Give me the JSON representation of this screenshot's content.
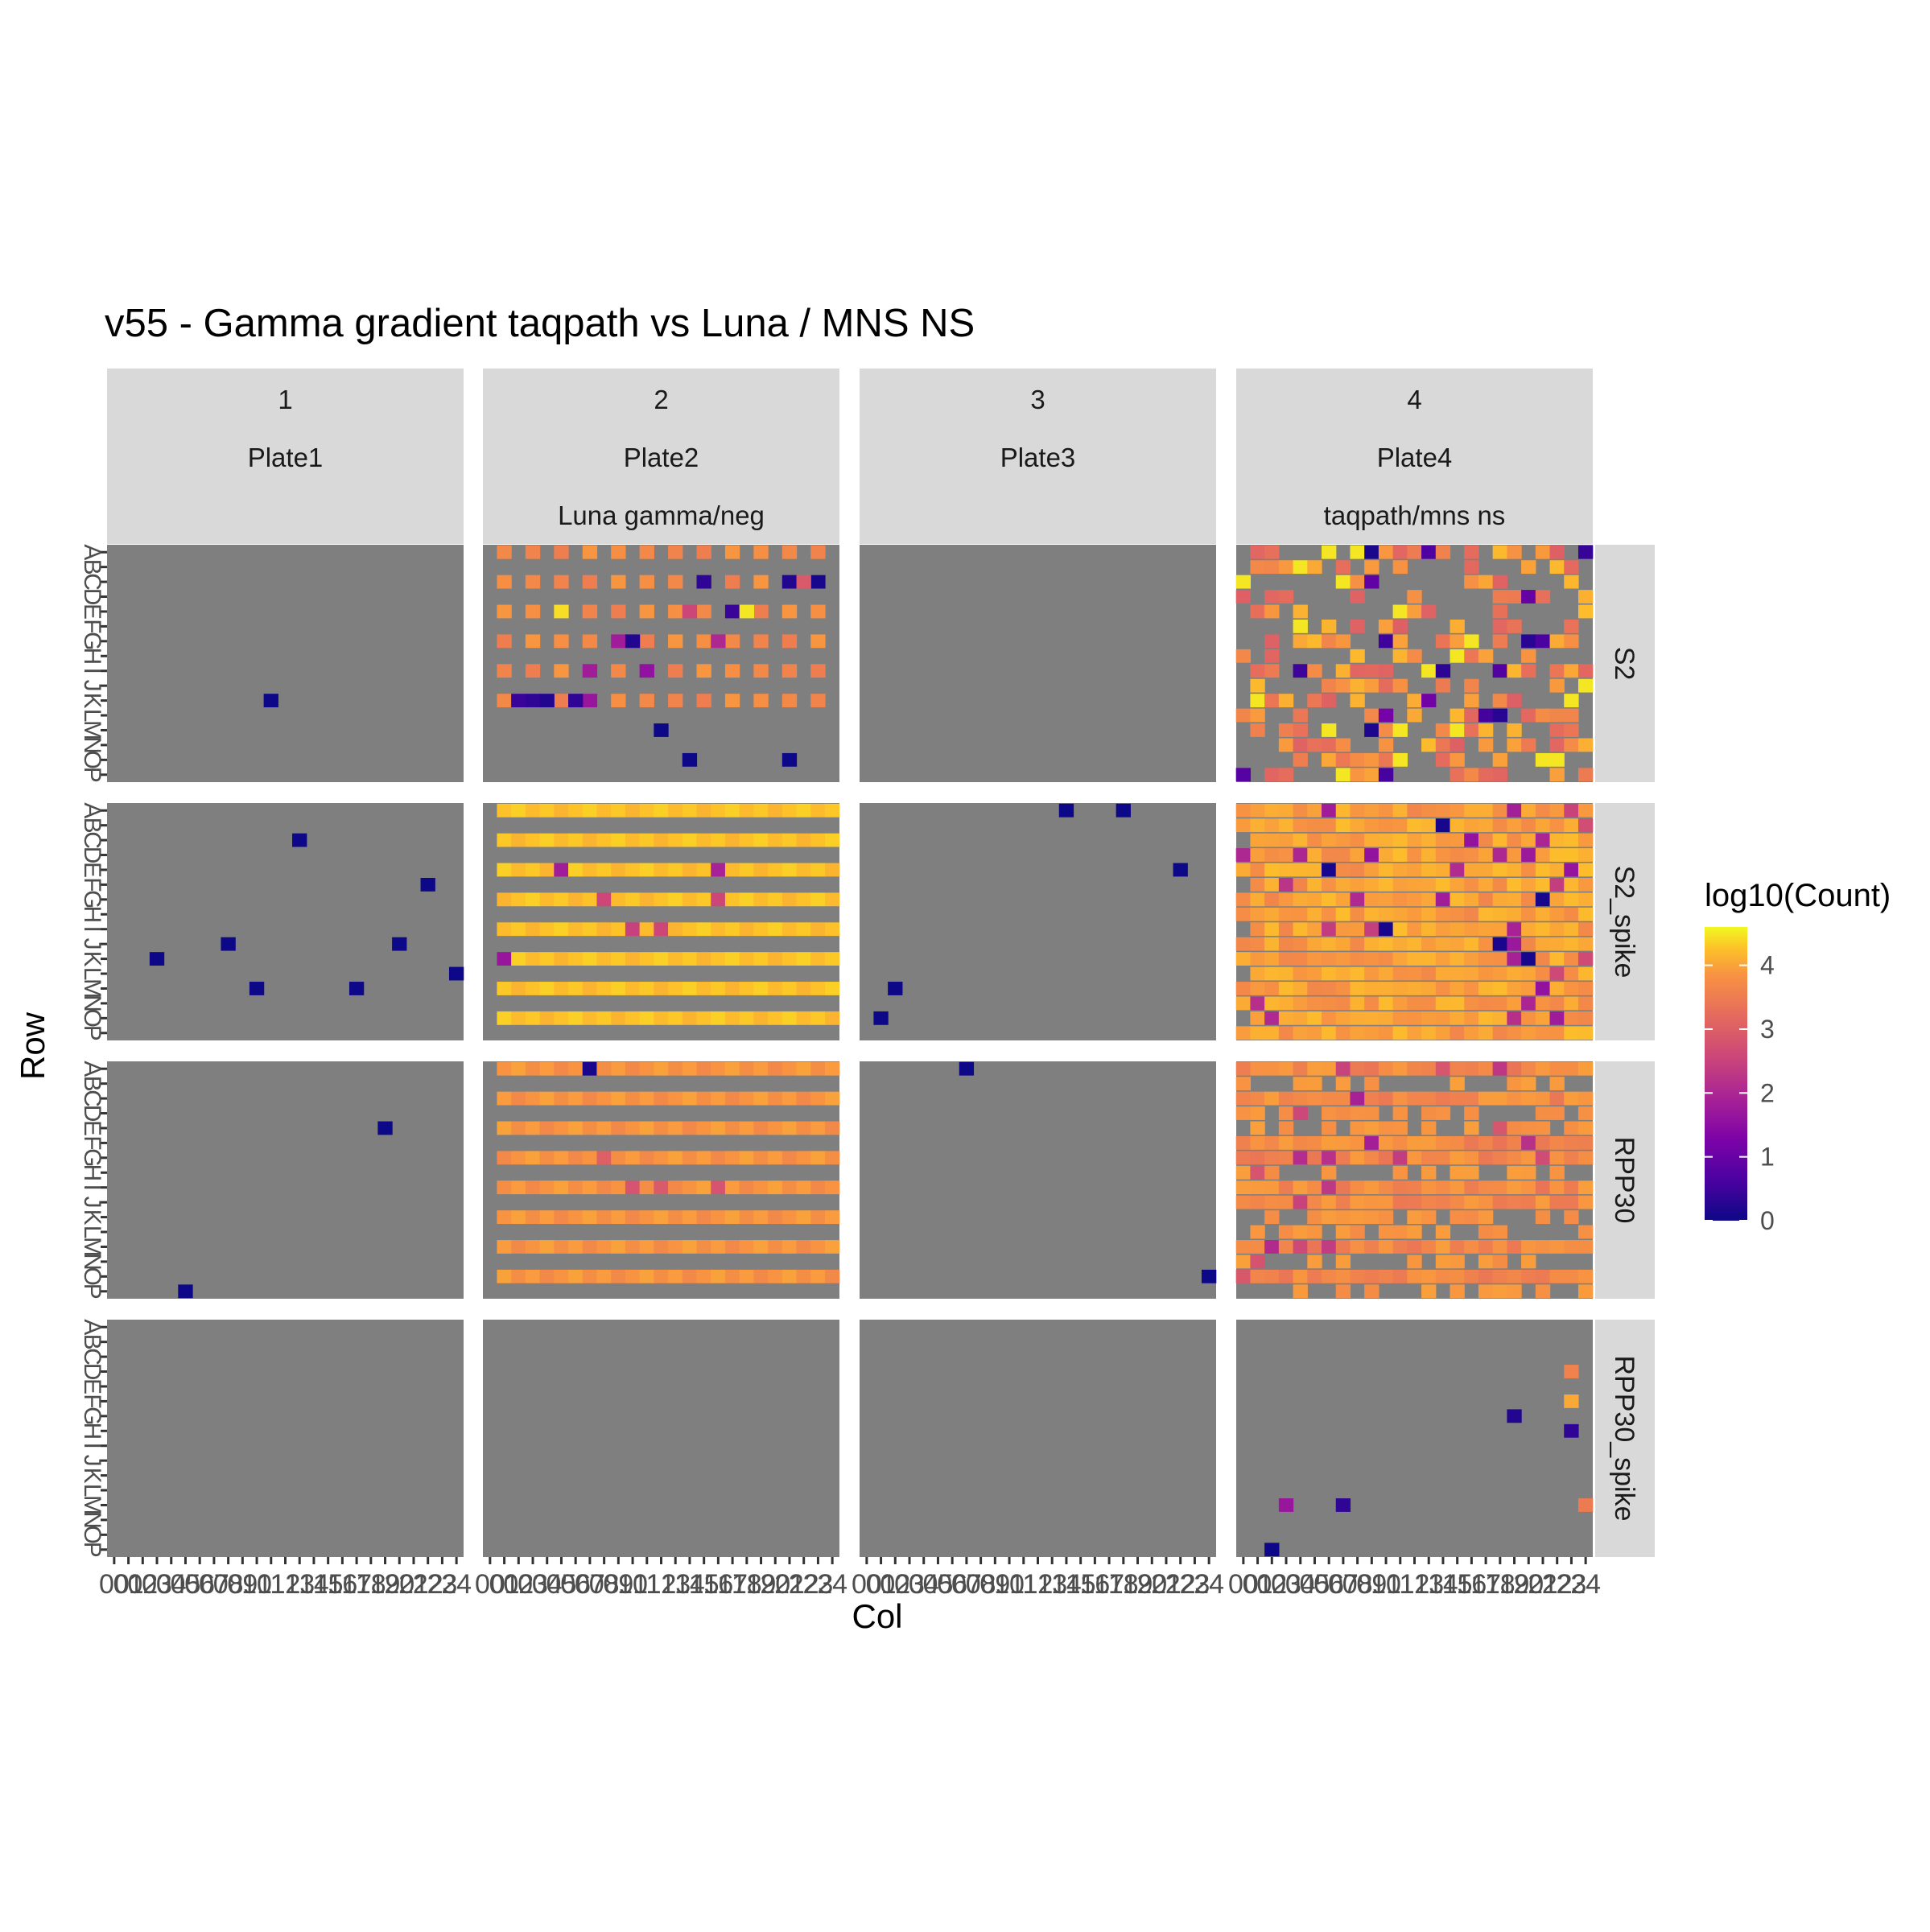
{
  "chart_data": {
    "type": "heatmap",
    "title": "v55 - Gamma gradient taqpath vs Luna /  MNS NS",
    "xlabel": "Col",
    "ylabel": "Row",
    "x_tick_labels": [
      "00",
      "01",
      "02",
      "03",
      "04",
      "05",
      "06",
      "07",
      "08",
      "09",
      "10",
      "11",
      "12",
      "13",
      "14",
      "15",
      "16",
      "17",
      "18",
      "19",
      "20",
      "21",
      "22",
      "23",
      "24"
    ],
    "y_tick_labels": [
      "A",
      "B",
      "C",
      "D",
      "E",
      "F",
      "G",
      "H",
      "I",
      "J",
      "K",
      "L",
      "M",
      "N",
      "O",
      "P"
    ],
    "column_facets": [
      {
        "number": "1",
        "plate": "Plate1",
        "description": ""
      },
      {
        "number": "2",
        "plate": "Plate2",
        "description": "Luna gamma/neg"
      },
      {
        "number": "3",
        "plate": "Plate3",
        "description": ""
      },
      {
        "number": "4",
        "plate": "Plate4",
        "description": "taqpath/mns ns"
      }
    ],
    "row_facets": [
      "S2",
      "S2_spike",
      "RPP30",
      "RPP30_spike"
    ],
    "legend": {
      "title": "log10(Count)",
      "breaks": [
        "0",
        "1",
        "2",
        "3",
        "4"
      ],
      "range": [
        0,
        4.6
      ],
      "palette": "plasma",
      "position": "right"
    },
    "panel_background": "#7f7f7f",
    "strip_background": "#d9d9d9",
    "note_values": "Each cell: [column, row, log10(Count)], row index 0 = A ... 15 = P; Plate2/Plate4 dense panels follow the visible pattern with approximate values",
    "sparse_cells": {
      "1|S2": [
        [
          11,
          10,
          0
        ]
      ],
      "1|S2_spike": [
        [
          13,
          2,
          0
        ],
        [
          22,
          5,
          0
        ],
        [
          8,
          9,
          0
        ],
        [
          20,
          9,
          0
        ],
        [
          3,
          10,
          0
        ],
        [
          24,
          11,
          0
        ],
        [
          10,
          12,
          0
        ],
        [
          17,
          12,
          0
        ]
      ],
      "1|RPP30": [
        [
          19,
          4,
          0
        ],
        [
          5,
          15,
          0
        ]
      ],
      "1|RPP30_spike": [],
      "2|RPP30_spike": [],
      "3|S2": [],
      "3|S2_spike": [
        [
          14,
          0,
          0
        ],
        [
          18,
          0,
          0
        ],
        [
          22,
          4,
          0
        ],
        [
          2,
          12,
          0
        ],
        [
          1,
          14,
          0
        ]
      ],
      "3|RPP30": [
        [
          7,
          0,
          0
        ],
        [
          24,
          14,
          0
        ]
      ],
      "3|RPP30_spike": [],
      "4|RPP30_spike": [
        [
          23,
          3,
          3.2
        ],
        [
          23,
          5,
          3.7
        ],
        [
          19,
          6,
          0.2
        ],
        [
          23,
          7,
          0.3
        ],
        [
          3,
          12,
          1.5
        ],
        [
          7,
          12,
          0.3
        ],
        [
          24,
          12,
          3.1
        ],
        [
          2,
          15,
          0
        ]
      ]
    },
    "patterned_panels": {
      "2|S2": {
        "rows_filled": [
          0,
          2,
          4,
          6,
          8,
          10
        ],
        "cols_step": 2,
        "base": 3.3,
        "specials": [
          [
            15,
            2,
            0.3
          ],
          [
            21,
            2,
            0.2
          ],
          [
            22,
            2,
            2.6
          ],
          [
            23,
            2,
            0.1
          ],
          [
            17,
            4,
            0.4
          ],
          [
            18,
            4,
            4.4
          ],
          [
            5,
            4,
            4.3
          ],
          [
            14,
            4,
            2.3
          ],
          [
            9,
            6,
            1.6
          ],
          [
            10,
            6,
            0.2
          ],
          [
            16,
            6,
            1.8
          ],
          [
            7,
            8,
            1.6
          ],
          [
            11,
            8,
            1.4
          ],
          [
            2,
            10,
            0.4
          ],
          [
            3,
            10,
            0.3
          ],
          [
            4,
            10,
            0.2
          ],
          [
            6,
            10,
            0.3
          ],
          [
            7,
            10,
            1.5
          ],
          [
            12,
            12,
            0
          ],
          [
            14,
            14,
            0
          ],
          [
            21,
            14,
            0
          ]
        ]
      },
      "2|S2_spike": {
        "rows_filled": [
          0,
          2,
          4,
          6,
          8,
          10,
          12,
          14
        ],
        "cols_step": 1,
        "base": 4.0,
        "specials": [
          [
            5,
            4,
            1.6
          ],
          [
            16,
            4,
            1.7
          ],
          [
            8,
            6,
            2.3
          ],
          [
            16,
            6,
            2.3
          ],
          [
            10,
            8,
            2.2
          ],
          [
            12,
            8,
            2.3
          ],
          [
            1,
            10,
            1.5
          ]
        ]
      },
      "2|RPP30": {
        "rows_filled": [
          0,
          2,
          4,
          6,
          8,
          10,
          12,
          14
        ],
        "cols_step": 1,
        "base": 3.45,
        "specials": [
          [
            7,
            0,
            0.1
          ],
          [
            8,
            6,
            2.7
          ],
          [
            10,
            8,
            2.5
          ],
          [
            12,
            8,
            2.6
          ],
          [
            16,
            8,
            2.5
          ]
        ]
      },
      "4|S2": {
        "mode": "scatter-dense",
        "seed": 41
      },
      "4|S2_spike": {
        "mode": "full-dense",
        "seed": 17
      },
      "4|RPP30": {
        "mode": "rowgap-dense",
        "seed": 29
      }
    }
  }
}
